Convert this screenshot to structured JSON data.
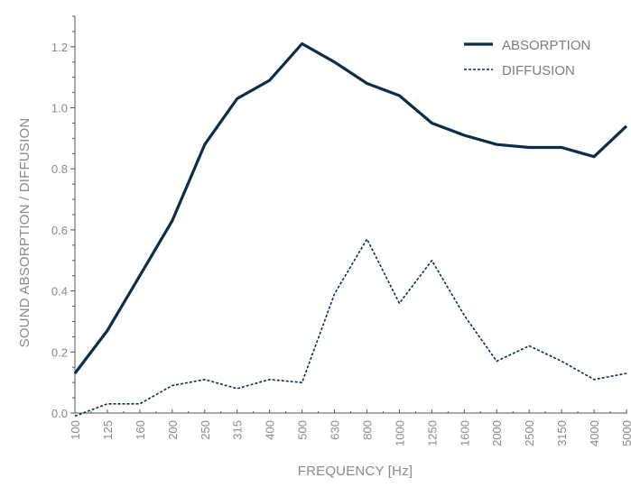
{
  "chart_data": {
    "type": "line",
    "categories": [
      "100",
      "125",
      "160",
      "200",
      "250",
      "315",
      "400",
      "500",
      "630",
      "800",
      "1000",
      "1250",
      "1600",
      "2000",
      "2500",
      "3150",
      "4000",
      "5000"
    ],
    "series": [
      {
        "name": "ABSORPTION",
        "style": "solid",
        "values": [
          0.13,
          0.27,
          0.45,
          0.63,
          0.88,
          1.03,
          1.09,
          1.21,
          1.15,
          1.08,
          1.04,
          0.95,
          0.91,
          0.88,
          0.87,
          0.87,
          0.84,
          0.94
        ]
      },
      {
        "name": "DIFFUSION",
        "style": "dashed",
        "values": [
          -0.01,
          0.03,
          0.03,
          0.09,
          0.11,
          0.08,
          0.11,
          0.1,
          0.39,
          0.57,
          0.36,
          0.5,
          0.32,
          0.17,
          0.22,
          0.17,
          0.11,
          0.13
        ]
      }
    ],
    "xlabel": "FREQUENCY [Hz]",
    "ylabel": "SOUND ABSORPTION / DIFFUSION",
    "ylim": [
      0.0,
      1.3
    ],
    "yticks": [
      0.0,
      0.2,
      0.4,
      0.6,
      0.8,
      1.0,
      1.2
    ],
    "ytick_labels": [
      "0.0",
      "0.2",
      "0.4",
      "0.6",
      "0.8",
      "1.0",
      "1.2"
    ],
    "grid": false,
    "legend_position": "top-right",
    "colors": {
      "line": "#0c2d45",
      "axis": "#555555",
      "text": "#8a8a8a"
    }
  }
}
